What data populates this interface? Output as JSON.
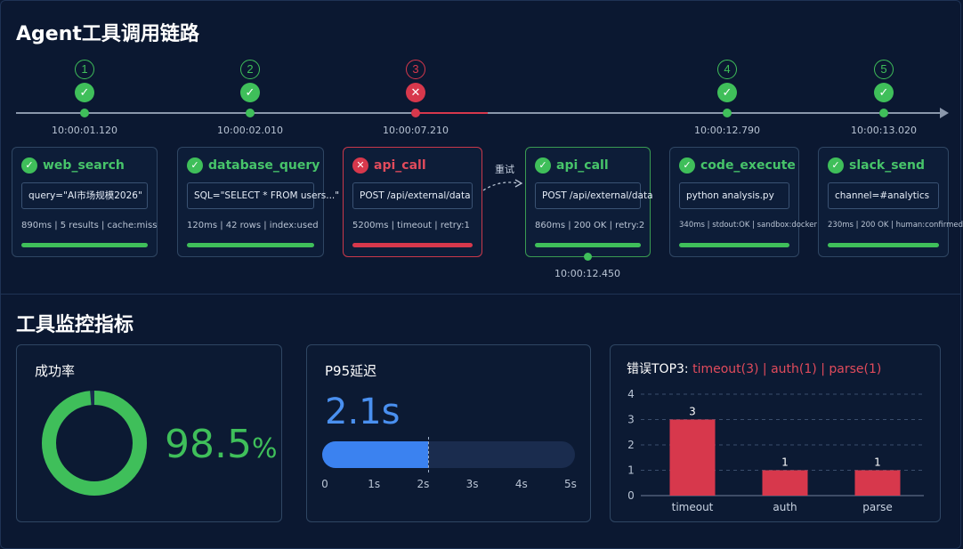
{
  "trace": {
    "title": "Agent工具调用链路",
    "steps": [
      {
        "num": "1",
        "status": "success",
        "time": "10:00:01.120"
      },
      {
        "num": "2",
        "status": "success",
        "time": "10:00:02.010"
      },
      {
        "num": "3",
        "status": "error",
        "time": "10:00:07.210"
      },
      {
        "num": "4",
        "status": "success",
        "time": "10:00:12.790"
      },
      {
        "num": "5",
        "status": "success",
        "time": "10:00:13.020"
      }
    ],
    "retry_label": "重试",
    "retry_time": "10:00:12.450",
    "cards": [
      {
        "name": "web_search",
        "status": "success",
        "input": "query=\"AI市场规模2026\"",
        "meta": "890ms  |  5 results  |  cache:miss"
      },
      {
        "name": "database_query",
        "status": "success",
        "input": "SQL=\"SELECT * FROM users...\"",
        "meta": "120ms  |  42 rows  |  index:used"
      },
      {
        "name": "api_call",
        "status": "error",
        "input": "POST /api/external/data",
        "meta": "5200ms  |  timeout  |  retry:1"
      },
      {
        "name": "api_call",
        "status": "success",
        "input": "POST /api/external/data",
        "meta": "860ms  |  200 OK  |  retry:2"
      },
      {
        "name": "code_execute",
        "status": "success",
        "input": "python analysis.py",
        "meta": "340ms  |  stdout:OK  |  sandbox:docker"
      },
      {
        "name": "slack_send",
        "status": "success",
        "input": "channel=#analytics",
        "meta": "230ms  |  200 OK  |  human:confirmed"
      }
    ]
  },
  "metrics": {
    "title": "工具监控指标",
    "success_rate": {
      "title": "成功率",
      "value": "98.5",
      "unit": "%",
      "fraction": 0.985
    },
    "p95": {
      "title": "P95延迟",
      "value": "2.1s",
      "seconds": 2.1,
      "ticks": [
        "0",
        "1s",
        "2s",
        "3s",
        "4s",
        "5s"
      ],
      "max": 5
    },
    "errors": {
      "title_label": "错误TOP3:",
      "title_items": "timeout(3)  |  auth(1)  |  parse(1)"
    }
  },
  "colors": {
    "success": "#3fbf5a",
    "error": "#d7384c",
    "accent": "#3b82f0",
    "background": "#0b1831"
  },
  "chart_data": {
    "type": "bar",
    "categories": [
      "timeout",
      "auth",
      "parse"
    ],
    "values": [
      3,
      1,
      1
    ],
    "ylim": [
      0,
      4
    ],
    "yticks": [
      "0",
      "1",
      "2",
      "3",
      "4"
    ],
    "grid": true
  }
}
